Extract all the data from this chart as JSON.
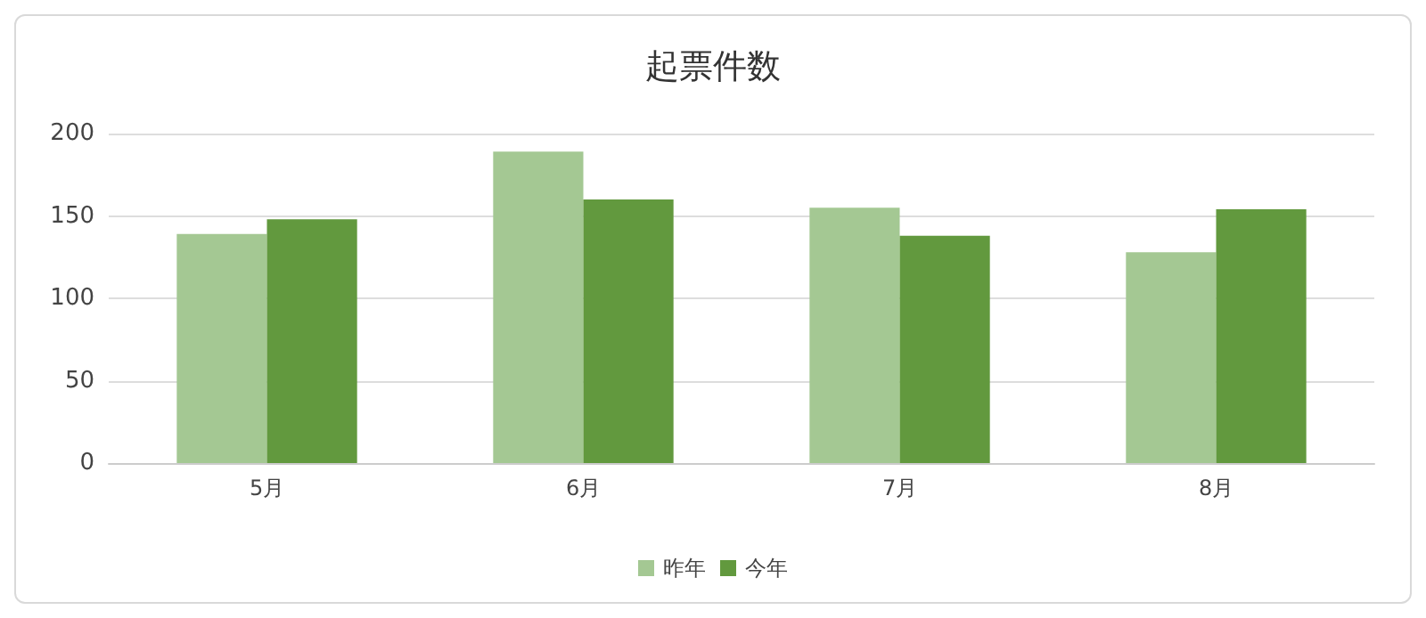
{
  "chart_data": {
    "type": "bar",
    "title": "起票件数",
    "categories": [
      "5月",
      "6月",
      "7月",
      "8月"
    ],
    "series": [
      {
        "name": "昨年",
        "color": "#a4c893",
        "values": [
          139,
          189,
          155,
          128
        ]
      },
      {
        "name": "今年",
        "color": "#62993e",
        "values": [
          148,
          160,
          138,
          154
        ]
      }
    ],
    "ylim": [
      0,
      200
    ],
    "yticks": [
      0,
      50,
      100,
      150,
      200
    ],
    "grid": "y",
    "legend": "bottom"
  }
}
